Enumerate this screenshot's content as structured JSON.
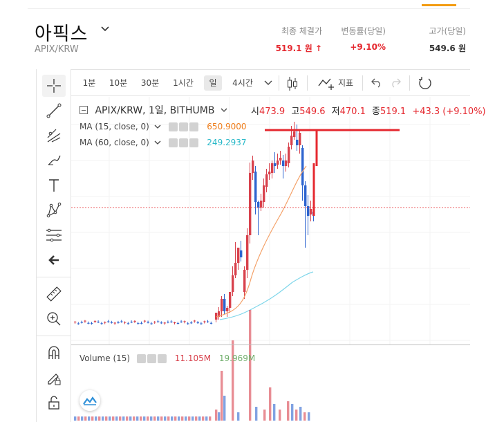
{
  "header": {
    "coin_name": "아픽스",
    "pair": "APIX/KRW",
    "stats": [
      {
        "label": "최종 체결가",
        "value": "519.1 원 ↑"
      },
      {
        "label": "변동률(당일)",
        "value": "+9.10%"
      },
      {
        "label": "고가(당일)",
        "value": "549.6 원"
      }
    ]
  },
  "toolbar": {
    "intervals": [
      "1분",
      "10분",
      "30분",
      "1시간",
      "일",
      "4시간"
    ],
    "selected_interval": "일",
    "indicator_label": "지표"
  },
  "chart": {
    "title": "APIX/KRW, 1일, BITHUMB",
    "ohlc": {
      "open_label": "시",
      "open": "473.9",
      "high_label": "고",
      "high": "549.6",
      "low_label": "저",
      "low": "470.1",
      "close_label": "종",
      "close": "519.1",
      "change": "+43.3 (+9.10%)"
    },
    "ma1": {
      "label": "MA (15, close, 0)",
      "value": "650.9000"
    },
    "ma2": {
      "label": "MA (60, close, 0)",
      "value": "249.2937"
    },
    "volume": {
      "label": "Volume (15)",
      "v1": "11.105M",
      "v2": "19.969M"
    }
  },
  "colors": {
    "up": "#d8414c",
    "down": "#2c64cf",
    "ma15": "#f4a26a",
    "ma60": "#7fd6ea",
    "accent": "#e5282f",
    "ma1_text": "#ef7d1a",
    "ma2_text": "#26b8c8",
    "vol1_text": "#d8414c",
    "vol2_text": "#6fae6a"
  }
}
